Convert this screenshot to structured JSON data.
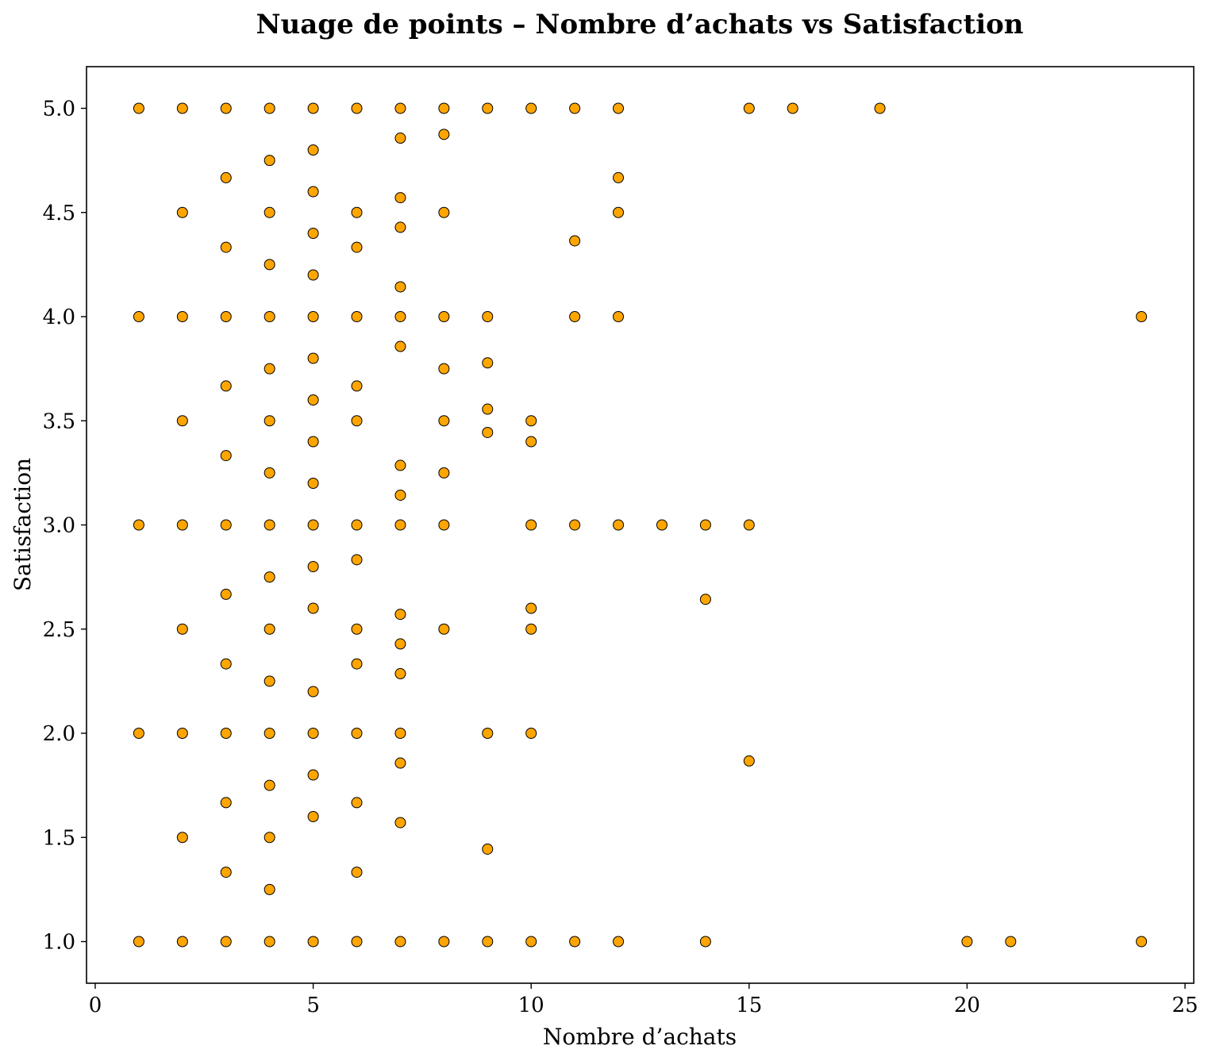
{
  "chart_data": {
    "type": "scatter",
    "title": "Nuage de points – Nombre d’achats vs Satisfaction",
    "xlabel": "Nombre d’achats",
    "ylabel": "Satisfaction",
    "xlim": [
      -0.2,
      25.2
    ],
    "ylim": [
      0.8,
      5.2
    ],
    "xticks": [
      0,
      5,
      10,
      15,
      20,
      25
    ],
    "xtick_labels": [
      "0",
      "5",
      "10",
      "15",
      "20",
      "25"
    ],
    "yticks": [
      1.0,
      1.5,
      2.0,
      2.5,
      3.0,
      3.5,
      4.0,
      4.5,
      5.0
    ],
    "ytick_labels": [
      "1.0",
      "1.5",
      "2.0",
      "2.5",
      "3.0",
      "3.5",
      "4.0",
      "4.5",
      "5.0"
    ],
    "grid": false,
    "marker_color": "#ffa500",
    "marker_edge_color": "#000000",
    "points": [
      [
        1,
        5
      ],
      [
        2,
        5
      ],
      [
        3,
        5
      ],
      [
        4,
        5
      ],
      [
        5,
        5
      ],
      [
        6,
        5
      ],
      [
        7,
        5
      ],
      [
        8,
        5
      ],
      [
        9,
        5
      ],
      [
        10,
        5
      ],
      [
        11,
        5
      ],
      [
        12,
        5
      ],
      [
        15,
        5
      ],
      [
        16,
        5
      ],
      [
        18,
        5
      ],
      [
        7,
        4.857
      ],
      [
        8,
        4.875
      ],
      [
        5,
        4.8
      ],
      [
        4,
        4.75
      ],
      [
        3,
        4.667
      ],
      [
        12,
        4.667
      ],
      [
        5,
        4.6
      ],
      [
        7,
        4.571
      ],
      [
        2,
        4.5
      ],
      [
        4,
        4.5
      ],
      [
        6,
        4.5
      ],
      [
        8,
        4.5
      ],
      [
        12,
        4.5
      ],
      [
        7,
        4.429
      ],
      [
        5,
        4.4
      ],
      [
        11,
        4.364
      ],
      [
        3,
        4.333
      ],
      [
        6,
        4.333
      ],
      [
        4,
        4.25
      ],
      [
        5,
        4.2
      ],
      [
        7,
        4.143
      ],
      [
        1,
        4
      ],
      [
        2,
        4
      ],
      [
        3,
        4
      ],
      [
        4,
        4
      ],
      [
        5,
        4
      ],
      [
        6,
        4
      ],
      [
        7,
        4
      ],
      [
        8,
        4
      ],
      [
        9,
        4
      ],
      [
        11,
        4
      ],
      [
        12,
        4
      ],
      [
        24,
        4
      ],
      [
        7,
        3.857
      ],
      [
        5,
        3.8
      ],
      [
        9,
        3.778
      ],
      [
        4,
        3.75
      ],
      [
        8,
        3.75
      ],
      [
        3,
        3.667
      ],
      [
        6,
        3.667
      ],
      [
        5,
        3.6
      ],
      [
        9,
        3.556
      ],
      [
        2,
        3.5
      ],
      [
        4,
        3.5
      ],
      [
        6,
        3.5
      ],
      [
        8,
        3.5
      ],
      [
        10,
        3.5
      ],
      [
        9,
        3.444
      ],
      [
        5,
        3.4
      ],
      [
        10,
        3.4
      ],
      [
        3,
        3.333
      ],
      [
        7,
        3.286
      ],
      [
        4,
        3.25
      ],
      [
        8,
        3.25
      ],
      [
        5,
        3.2
      ],
      [
        7,
        3.143
      ],
      [
        1,
        3
      ],
      [
        2,
        3
      ],
      [
        3,
        3
      ],
      [
        4,
        3
      ],
      [
        5,
        3
      ],
      [
        6,
        3
      ],
      [
        7,
        3
      ],
      [
        8,
        3
      ],
      [
        10,
        3
      ],
      [
        11,
        3
      ],
      [
        12,
        3
      ],
      [
        13,
        3
      ],
      [
        14,
        3
      ],
      [
        15,
        3
      ],
      [
        6,
        2.833
      ],
      [
        5,
        2.8
      ],
      [
        4,
        2.75
      ],
      [
        3,
        2.667
      ],
      [
        14,
        2.643
      ],
      [
        5,
        2.6
      ],
      [
        10,
        2.6
      ],
      [
        7,
        2.571
      ],
      [
        2,
        2.5
      ],
      [
        4,
        2.5
      ],
      [
        6,
        2.5
      ],
      [
        8,
        2.5
      ],
      [
        10,
        2.5
      ],
      [
        7,
        2.429
      ],
      [
        3,
        2.333
      ],
      [
        6,
        2.333
      ],
      [
        7,
        2.286
      ],
      [
        4,
        2.25
      ],
      [
        5,
        2.2
      ],
      [
        1,
        2
      ],
      [
        2,
        2
      ],
      [
        3,
        2
      ],
      [
        4,
        2
      ],
      [
        5,
        2
      ],
      [
        6,
        2
      ],
      [
        7,
        2
      ],
      [
        9,
        2
      ],
      [
        10,
        2
      ],
      [
        15,
        1.867
      ],
      [
        7,
        1.857
      ],
      [
        5,
        1.8
      ],
      [
        4,
        1.75
      ],
      [
        3,
        1.667
      ],
      [
        6,
        1.667
      ],
      [
        5,
        1.6
      ],
      [
        7,
        1.571
      ],
      [
        2,
        1.5
      ],
      [
        4,
        1.5
      ],
      [
        9,
        1.444
      ],
      [
        3,
        1.333
      ],
      [
        6,
        1.333
      ],
      [
        4,
        1.25
      ],
      [
        1,
        1
      ],
      [
        2,
        1
      ],
      [
        3,
        1
      ],
      [
        4,
        1
      ],
      [
        5,
        1
      ],
      [
        6,
        1
      ],
      [
        7,
        1
      ],
      [
        8,
        1
      ],
      [
        9,
        1
      ],
      [
        10,
        1
      ],
      [
        11,
        1
      ],
      [
        12,
        1
      ],
      [
        14,
        1
      ],
      [
        20,
        1
      ],
      [
        21,
        1
      ],
      [
        24,
        1
      ]
    ]
  }
}
